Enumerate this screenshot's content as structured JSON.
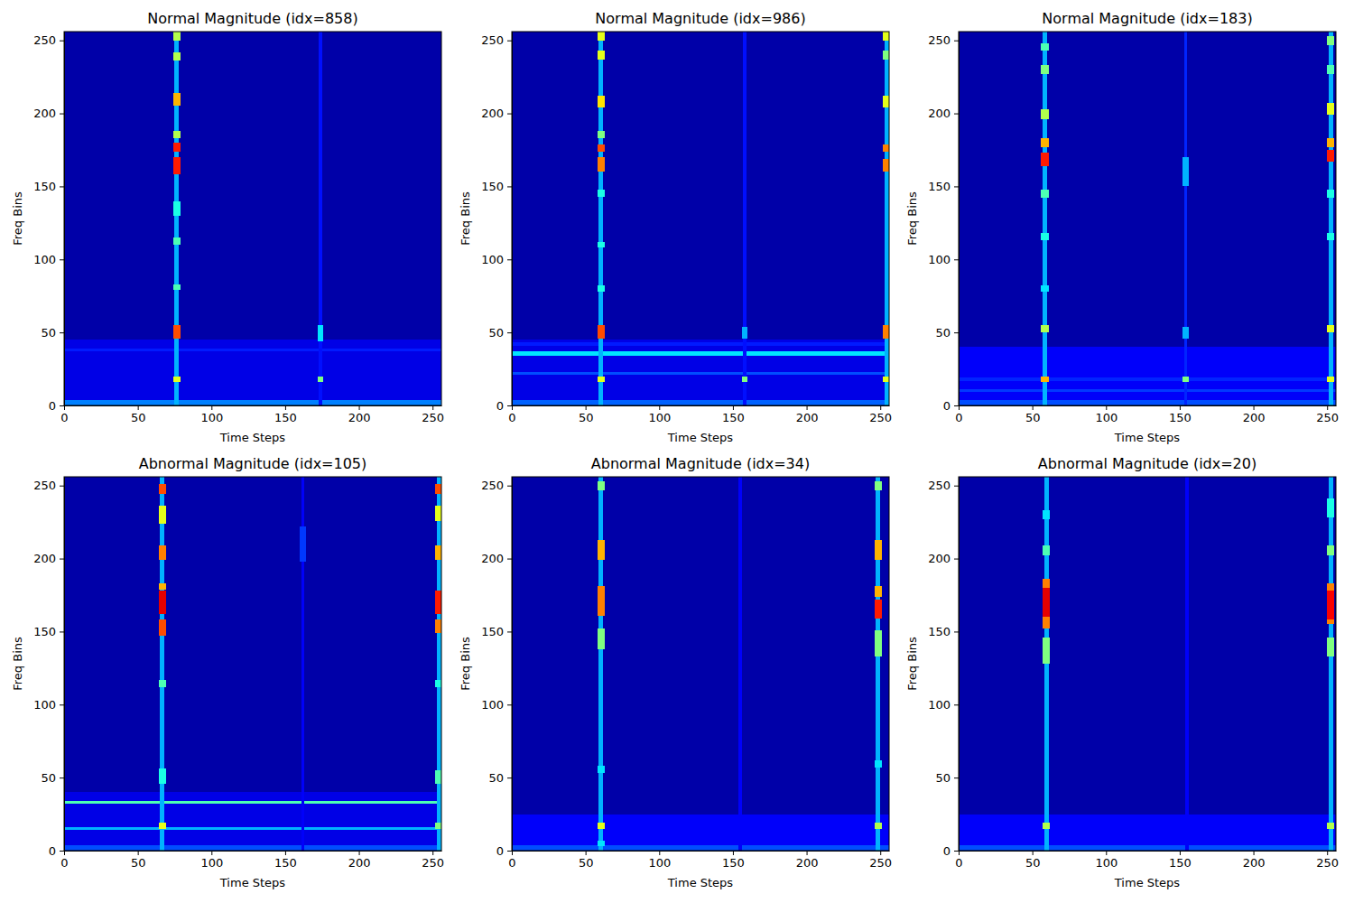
{
  "chart_data": [
    {
      "type": "heatmap",
      "title": "Normal Magnitude (idx=858)",
      "x_label": "Time Steps",
      "y_label": "Freq Bins",
      "xlim": [
        0,
        256
      ],
      "ylim": [
        0,
        256
      ],
      "xticks": [
        0,
        50,
        100,
        150,
        200,
        250
      ],
      "yticks": [
        0,
        50,
        100,
        150,
        200,
        250
      ],
      "color": "jet",
      "clim": [
        0,
        1
      ],
      "cells": [
        [
          0,
          256,
          0,
          256,
          0.04
        ],
        [
          0,
          256,
          0,
          45,
          0.1
        ],
        [
          0,
          256,
          0,
          4,
          0.25
        ],
        [
          0,
          256,
          37,
          39,
          0.15
        ],
        [
          75,
          78,
          0,
          256,
          0.3
        ],
        [
          74,
          79,
          46,
          55,
          0.8
        ],
        [
          74,
          79,
          16,
          20,
          0.6
        ],
        [
          74,
          79,
          79,
          83,
          0.45
        ],
        [
          74,
          79,
          110,
          115,
          0.45
        ],
        [
          74,
          79,
          130,
          140,
          0.4
        ],
        [
          74,
          79,
          158,
          170,
          0.85
        ],
        [
          74,
          79,
          174,
          180,
          0.85
        ],
        [
          74,
          79,
          183,
          188,
          0.55
        ],
        [
          74,
          79,
          205,
          214,
          0.7
        ],
        [
          74,
          79,
          236,
          242,
          0.55
        ],
        [
          74,
          79,
          250,
          256,
          0.55
        ],
        [
          173,
          175,
          0,
          256,
          0.14
        ],
        [
          172,
          176,
          44,
          55,
          0.35
        ],
        [
          172,
          176,
          16,
          20,
          0.5
        ]
      ]
    },
    {
      "type": "heatmap",
      "title": "Normal Magnitude (idx=986)",
      "x_label": "Time Steps",
      "y_label": "Freq Bins",
      "xlim": [
        0,
        256
      ],
      "ylim": [
        0,
        256
      ],
      "xticks": [
        0,
        50,
        100,
        150,
        200,
        250
      ],
      "yticks": [
        0,
        50,
        100,
        150,
        200,
        250
      ],
      "color": "jet",
      "clim": [
        0,
        1
      ],
      "cells": [
        [
          0,
          256,
          0,
          256,
          0.04
        ],
        [
          0,
          256,
          0,
          45,
          0.1
        ],
        [
          0,
          256,
          0,
          4,
          0.22
        ],
        [
          0,
          256,
          34,
          37,
          0.35
        ],
        [
          0,
          256,
          21,
          23,
          0.2
        ],
        [
          0,
          256,
          41,
          43,
          0.15
        ],
        [
          59,
          62,
          0,
          256,
          0.3
        ],
        [
          58,
          63,
          46,
          55,
          0.8
        ],
        [
          58,
          63,
          16,
          20,
          0.6
        ],
        [
          58,
          63,
          78,
          82,
          0.4
        ],
        [
          58,
          63,
          108,
          112,
          0.4
        ],
        [
          58,
          63,
          143,
          148,
          0.4
        ],
        [
          58,
          63,
          160,
          170,
          0.75
        ],
        [
          58,
          63,
          174,
          179,
          0.8
        ],
        [
          58,
          63,
          183,
          188,
          0.5
        ],
        [
          58,
          63,
          204,
          212,
          0.65
        ],
        [
          58,
          63,
          237,
          243,
          0.6
        ],
        [
          58,
          63,
          250,
          256,
          0.6
        ],
        [
          157,
          159,
          0,
          256,
          0.14
        ],
        [
          156,
          160,
          16,
          20,
          0.5
        ],
        [
          156,
          160,
          46,
          54,
          0.3
        ],
        [
          253,
          256,
          0,
          256,
          0.3
        ],
        [
          252,
          256,
          46,
          55,
          0.75
        ],
        [
          252,
          256,
          16,
          20,
          0.6
        ],
        [
          252,
          256,
          160,
          169,
          0.75
        ],
        [
          252,
          256,
          174,
          179,
          0.75
        ],
        [
          252,
          256,
          204,
          212,
          0.6
        ],
        [
          252,
          256,
          237,
          243,
          0.5
        ],
        [
          252,
          256,
          250,
          256,
          0.6
        ]
      ]
    },
    {
      "type": "heatmap",
      "title": "Normal Magnitude (idx=183)",
      "x_label": "Time Steps",
      "y_label": "Freq Bins",
      "xlim": [
        0,
        256
      ],
      "ylim": [
        0,
        256
      ],
      "xticks": [
        0,
        50,
        100,
        150,
        200,
        250
      ],
      "yticks": [
        0,
        50,
        100,
        150,
        200,
        250
      ],
      "color": "jet",
      "clim": [
        0,
        1
      ],
      "cells": [
        [
          0,
          256,
          0,
          256,
          0.04
        ],
        [
          0,
          256,
          0,
          40,
          0.12
        ],
        [
          0,
          256,
          0,
          4,
          0.2
        ],
        [
          0,
          256,
          9,
          11,
          0.18
        ],
        [
          0,
          256,
          17,
          19,
          0.16
        ],
        [
          57,
          60,
          0,
          256,
          0.3
        ],
        [
          56,
          61,
          16,
          20,
          0.7
        ],
        [
          56,
          61,
          50,
          55,
          0.55
        ],
        [
          56,
          61,
          78,
          82,
          0.35
        ],
        [
          56,
          61,
          113,
          118,
          0.4
        ],
        [
          56,
          61,
          142,
          148,
          0.45
        ],
        [
          56,
          61,
          164,
          173,
          0.85
        ],
        [
          56,
          61,
          177,
          183,
          0.7
        ],
        [
          56,
          61,
          196,
          203,
          0.55
        ],
        [
          56,
          61,
          227,
          233,
          0.5
        ],
        [
          56,
          61,
          243,
          248,
          0.45
        ],
        [
          153,
          155,
          0,
          256,
          0.16
        ],
        [
          152,
          156,
          16,
          20,
          0.5
        ],
        [
          152,
          156,
          46,
          54,
          0.3
        ],
        [
          152,
          156,
          150,
          170,
          0.3
        ],
        [
          251,
          254,
          0,
          256,
          0.3
        ],
        [
          250,
          255,
          16,
          20,
          0.6
        ],
        [
          250,
          255,
          50,
          55,
          0.6
        ],
        [
          250,
          255,
          113,
          118,
          0.4
        ],
        [
          250,
          255,
          142,
          148,
          0.4
        ],
        [
          250,
          255,
          167,
          175,
          0.85
        ],
        [
          250,
          255,
          177,
          183,
          0.7
        ],
        [
          250,
          255,
          199,
          207,
          0.6
        ],
        [
          250,
          255,
          227,
          233,
          0.45
        ],
        [
          250,
          255,
          247,
          253,
          0.5
        ]
      ]
    },
    {
      "type": "heatmap",
      "title": "Abnormal Magnitude (idx=105)",
      "x_label": "Time Steps",
      "y_label": "Freq Bins",
      "xlim": [
        0,
        256
      ],
      "ylim": [
        0,
        256
      ],
      "xticks": [
        0,
        50,
        100,
        150,
        200,
        250
      ],
      "yticks": [
        0,
        50,
        100,
        150,
        200,
        250
      ],
      "color": "jet",
      "clim": [
        0,
        1
      ],
      "cells": [
        [
          0,
          256,
          0,
          256,
          0.04
        ],
        [
          0,
          256,
          0,
          40,
          0.1
        ],
        [
          0,
          256,
          0,
          4,
          0.2
        ],
        [
          0,
          256,
          32,
          34,
          0.45
        ],
        [
          0,
          256,
          14,
          16,
          0.3
        ],
        [
          65,
          68,
          0,
          256,
          0.3
        ],
        [
          64,
          69,
          15,
          19,
          0.6
        ],
        [
          64,
          69,
          46,
          56,
          0.4
        ],
        [
          64,
          69,
          112,
          117,
          0.45
        ],
        [
          64,
          69,
          147,
          158,
          0.8
        ],
        [
          64,
          69,
          162,
          178,
          0.9
        ],
        [
          64,
          69,
          179,
          183,
          0.7
        ],
        [
          64,
          69,
          199,
          209,
          0.75
        ],
        [
          64,
          69,
          224,
          236,
          0.6
        ],
        [
          64,
          69,
          244,
          251,
          0.8
        ],
        [
          161,
          163,
          0,
          256,
          0.12
        ],
        [
          160,
          164,
          198,
          222,
          0.18
        ],
        [
          253,
          256,
          0,
          256,
          0.3
        ],
        [
          252,
          256,
          15,
          19,
          0.5
        ],
        [
          252,
          256,
          46,
          55,
          0.45
        ],
        [
          252,
          256,
          112,
          117,
          0.4
        ],
        [
          252,
          256,
          149,
          158,
          0.75
        ],
        [
          252,
          256,
          162,
          178,
          0.85
        ],
        [
          252,
          256,
          199,
          209,
          0.7
        ],
        [
          252,
          256,
          226,
          236,
          0.6
        ],
        [
          252,
          256,
          244,
          251,
          0.8
        ]
      ]
    },
    {
      "type": "heatmap",
      "title": "Abnormal Magnitude (idx=34)",
      "x_label": "Time Steps",
      "y_label": "Freq Bins",
      "xlim": [
        0,
        256
      ],
      "ylim": [
        0,
        256
      ],
      "xticks": [
        0,
        50,
        100,
        150,
        200,
        250
      ],
      "yticks": [
        0,
        50,
        100,
        150,
        200,
        250
      ],
      "color": "jet",
      "clim": [
        0,
        1
      ],
      "cells": [
        [
          0,
          256,
          0,
          256,
          0.04
        ],
        [
          0,
          256,
          0,
          25,
          0.12
        ],
        [
          0,
          256,
          0,
          4,
          0.2
        ],
        [
          59,
          62,
          0,
          256,
          0.3
        ],
        [
          58,
          63,
          15,
          19,
          0.6
        ],
        [
          58,
          63,
          3,
          7,
          0.35
        ],
        [
          58,
          63,
          53,
          58,
          0.35
        ],
        [
          58,
          63,
          138,
          152,
          0.5
        ],
        [
          58,
          63,
          161,
          181,
          0.75
        ],
        [
          58,
          63,
          199,
          213,
          0.7
        ],
        [
          58,
          63,
          247,
          253,
          0.5
        ],
        [
          154,
          156,
          0,
          256,
          0.12
        ],
        [
          247,
          250,
          0,
          256,
          0.3
        ],
        [
          246,
          251,
          15,
          19,
          0.55
        ],
        [
          246,
          251,
          57,
          62,
          0.35
        ],
        [
          246,
          251,
          133,
          151,
          0.5
        ],
        [
          246,
          251,
          159,
          172,
          0.85
        ],
        [
          246,
          251,
          174,
          181,
          0.7
        ],
        [
          246,
          251,
          199,
          213,
          0.7
        ],
        [
          246,
          251,
          247,
          253,
          0.5
        ]
      ]
    },
    {
      "type": "heatmap",
      "title": "Abnormal Magnitude (idx=20)",
      "x_label": "Time Steps",
      "y_label": "Freq Bins",
      "xlim": [
        0,
        256
      ],
      "ylim": [
        0,
        256
      ],
      "xticks": [
        0,
        50,
        100,
        150,
        200,
        250
      ],
      "yticks": [
        0,
        50,
        100,
        150,
        200,
        250
      ],
      "color": "jet",
      "clim": [
        0,
        1
      ],
      "cells": [
        [
          0,
          256,
          0,
          256,
          0.04
        ],
        [
          0,
          256,
          0,
          25,
          0.12
        ],
        [
          0,
          256,
          0,
          4,
          0.2
        ],
        [
          58,
          61,
          0,
          256,
          0.3
        ],
        [
          57,
          62,
          15,
          19,
          0.55
        ],
        [
          57,
          62,
          128,
          146,
          0.5
        ],
        [
          57,
          62,
          152,
          186,
          0.75
        ],
        [
          57,
          62,
          160,
          180,
          0.9
        ],
        [
          57,
          62,
          202,
          209,
          0.45
        ],
        [
          57,
          62,
          227,
          233,
          0.35
        ],
        [
          154,
          156,
          0,
          256,
          0.12
        ],
        [
          251,
          254,
          0,
          256,
          0.3
        ],
        [
          250,
          255,
          15,
          19,
          0.55
        ],
        [
          250,
          255,
          133,
          146,
          0.5
        ],
        [
          250,
          255,
          155,
          183,
          0.75
        ],
        [
          250,
          255,
          158,
          178,
          0.88
        ],
        [
          250,
          255,
          202,
          209,
          0.5
        ],
        [
          250,
          255,
          228,
          241,
          0.4
        ]
      ]
    }
  ]
}
